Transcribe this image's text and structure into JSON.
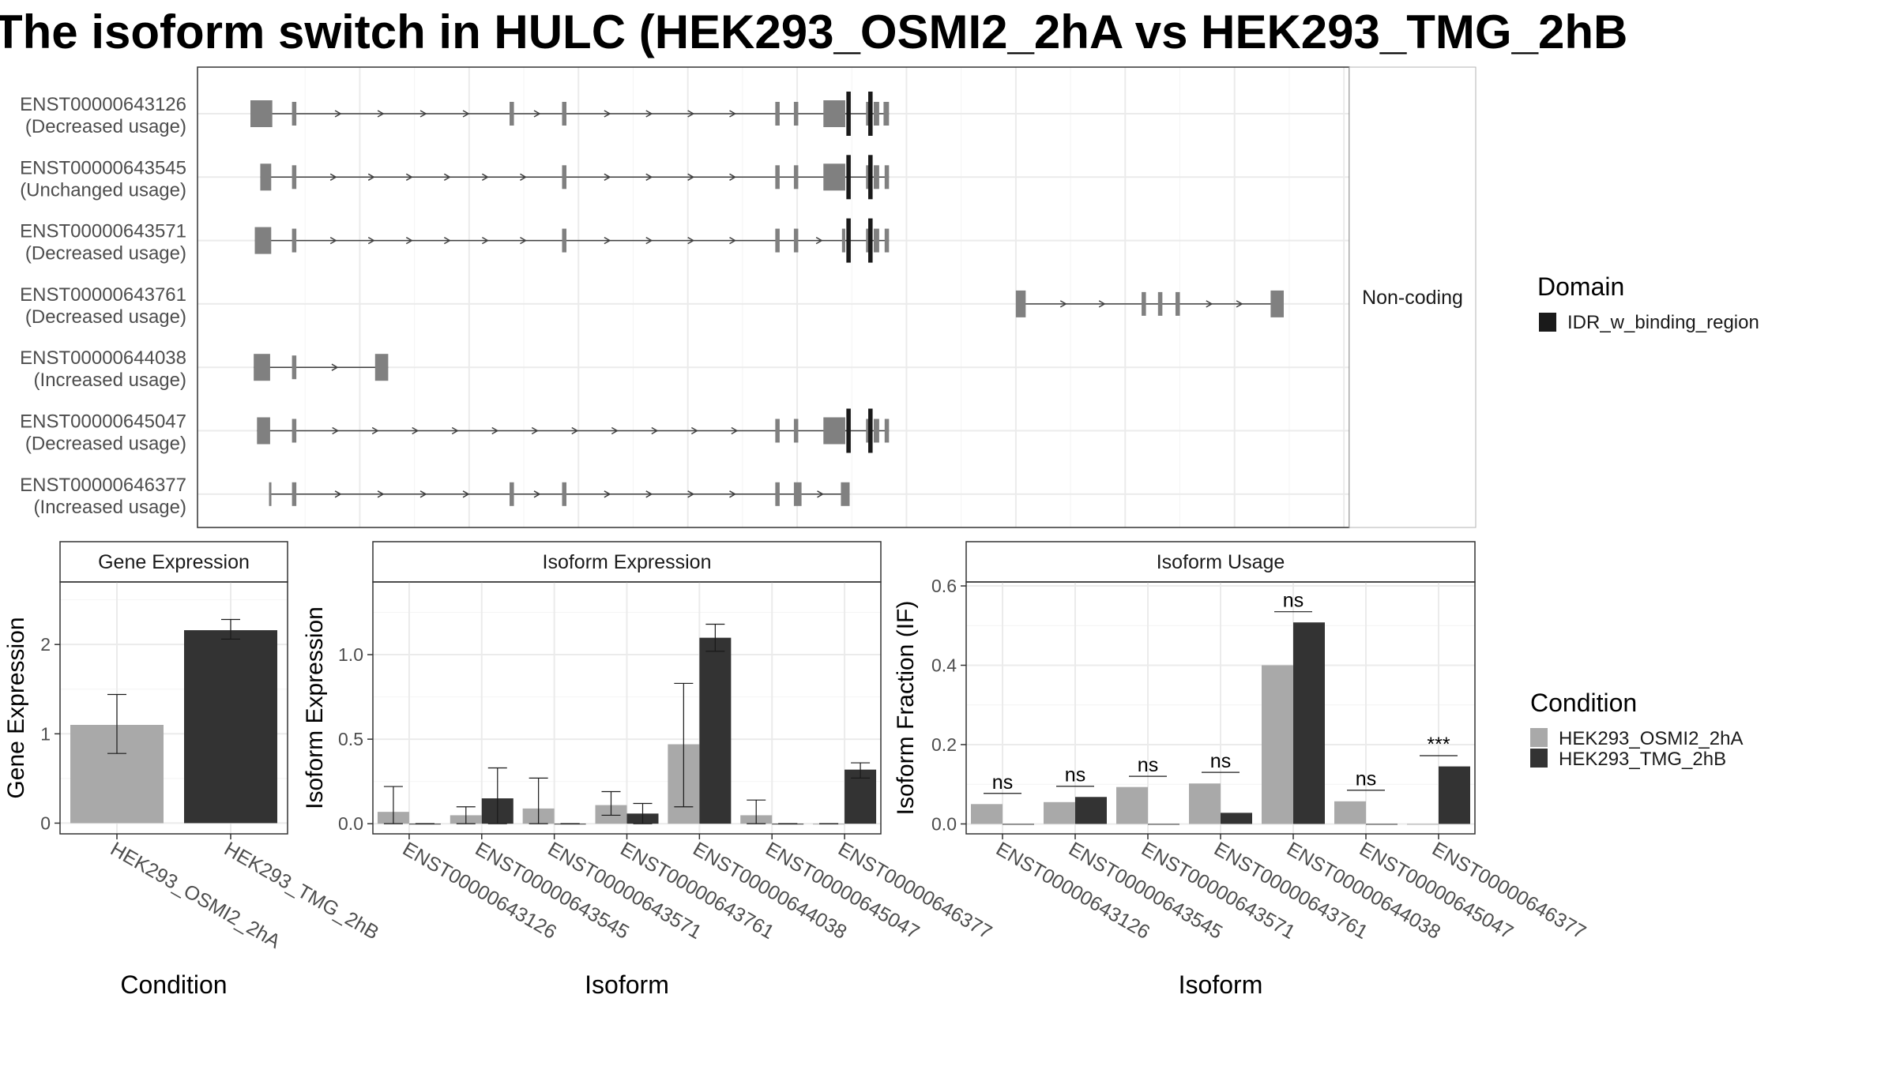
{
  "title": "The isoform switch in HULC (HEK293_OSMI2_2hA vs HEK293_TMG_2hB",
  "colors": {
    "osmi": "#a9a9a9",
    "tmg": "#333333",
    "exon": "#808080",
    "domain": "#1a1a1a",
    "grid": "#ebebeb",
    "panel_border": "#333333",
    "strip_fill": "#ffffff"
  },
  "chart_data": [
    {
      "type": "transcript_structure",
      "facet_label": "Non-coding",
      "xlim": [
        0,
        1000
      ],
      "legend": {
        "title": "Domain",
        "entries": [
          "IDR_w_binding_region"
        ]
      },
      "transcripts": [
        {
          "id": "ENST00000643126",
          "usage": "(Decreased usage)",
          "exons": [
            [
              0,
              20
            ],
            [
              38,
              42
            ],
            [
              237,
              241
            ],
            [
              285,
              289
            ],
            [
              480,
              484
            ],
            [
              497,
              501
            ],
            [
              524,
              544
            ],
            [
              563,
              568
            ],
            [
              570,
              575
            ],
            [
              584,
              579
            ]
          ],
          "domains": [
            [
              545,
              549
            ],
            [
              565,
              569
            ]
          ]
        },
        {
          "id": "ENST00000643545",
          "usage": "(Unchanged usage)",
          "exons": [
            [
              9,
              19
            ],
            [
              38,
              42
            ],
            [
              285,
              289
            ],
            [
              480,
              484
            ],
            [
              497,
              501
            ],
            [
              524,
              544
            ],
            [
              563,
              568
            ],
            [
              570,
              575
            ],
            [
              580,
              584
            ]
          ],
          "domains": [
            [
              545,
              549
            ],
            [
              565,
              569
            ]
          ]
        },
        {
          "id": "ENST00000643571",
          "usage": "(Decreased usage)",
          "exons": [
            [
              4,
              19
            ],
            [
              38,
              42
            ],
            [
              285,
              289
            ],
            [
              480,
              484
            ],
            [
              497,
              501
            ],
            [
              541,
              544
            ],
            [
              563,
              568
            ],
            [
              570,
              575
            ],
            [
              580,
              584
            ]
          ],
          "domains": [
            [
              545,
              549
            ],
            [
              565,
              569
            ]
          ]
        },
        {
          "id": "ENST00000643761",
          "usage": "(Decreased usage)",
          "exons": [
            [
              700,
              709
            ],
            [
              815,
              819
            ],
            [
              830,
              834
            ],
            [
              846,
              850
            ],
            [
              933,
              945
            ]
          ],
          "domains": []
        },
        {
          "id": "ENST00000644038",
          "usage": "(Increased usage)",
          "exons": [
            [
              3,
              18
            ],
            [
              38,
              42
            ],
            [
              114,
              126
            ]
          ],
          "domains": []
        },
        {
          "id": "ENST00000645047",
          "usage": "(Decreased usage)",
          "exons": [
            [
              6,
              18
            ],
            [
              38,
              42
            ],
            [
              480,
              484
            ],
            [
              497,
              501
            ],
            [
              524,
              544
            ],
            [
              563,
              568
            ],
            [
              570,
              575
            ],
            [
              580,
              584
            ]
          ],
          "domains": [
            [
              545,
              549
            ],
            [
              565,
              569
            ]
          ]
        },
        {
          "id": "ENST00000646377",
          "usage": "(Increased usage)",
          "exons": [
            [
              17,
              19
            ],
            [
              38,
              42
            ],
            [
              237,
              241
            ],
            [
              285,
              289
            ],
            [
              480,
              484
            ],
            [
              497,
              504
            ],
            [
              540,
              548
            ]
          ],
          "domains": []
        }
      ]
    },
    {
      "type": "bar",
      "title": "Gene Expression",
      "xlabel": "Condition",
      "ylabel": "Gene Expression",
      "ylim": [
        -0.12,
        2.7
      ],
      "yticks": [
        0,
        1,
        2
      ],
      "categories": [
        "HEK293_OSMI2_2hA",
        "HEK293_TMG_2hB"
      ],
      "values": [
        1.1,
        2.16
      ],
      "errors": [
        [
          0.78,
          1.44
        ],
        [
          2.06,
          2.28
        ]
      ]
    },
    {
      "type": "bar",
      "title": "Isoform Expression",
      "xlabel": "Isoform",
      "ylabel": "Isoform Expression",
      "ylim": [
        -0.06,
        1.43
      ],
      "yticks": [
        0.0,
        0.5,
        1.0
      ],
      "categories": [
        "ENST00000643126",
        "ENST00000643545",
        "ENST00000643571",
        "ENST00000643761",
        "ENST00000644038",
        "ENST00000645047",
        "ENST00000646377"
      ],
      "series": [
        {
          "name": "HEK293_OSMI2_2hA",
          "values": [
            0.07,
            0.05,
            0.09,
            0.11,
            0.47,
            0.05,
            0.0
          ],
          "errors": [
            [
              0.0,
              0.22
            ],
            [
              0.0,
              0.1
            ],
            [
              0.0,
              0.27
            ],
            [
              0.05,
              0.19
            ],
            [
              0.1,
              0.83
            ],
            [
              0.0,
              0.14
            ],
            [
              0.0,
              0.0
            ]
          ]
        },
        {
          "name": "HEK293_TMG_2hB",
          "values": [
            0.0,
            0.15,
            0.0,
            0.06,
            1.1,
            0.0,
            0.32
          ],
          "errors": [
            [
              0.0,
              0.0
            ],
            [
              0.0,
              0.33
            ],
            [
              0.0,
              0.0
            ],
            [
              0.0,
              0.12
            ],
            [
              1.02,
              1.18
            ],
            [
              0.0,
              0.0
            ],
            [
              0.27,
              0.36
            ]
          ]
        }
      ]
    },
    {
      "type": "bar",
      "title": "Isoform Usage",
      "xlabel": "Isoform",
      "ylabel": "Isoform Fraction (IF)",
      "ylim": [
        -0.025,
        0.61
      ],
      "yticks": [
        0.0,
        0.2,
        0.4,
        0.6
      ],
      "categories": [
        "ENST00000643126",
        "ENST00000643545",
        "ENST00000643571",
        "ENST00000643761",
        "ENST00000644038",
        "ENST00000645047",
        "ENST00000646377"
      ],
      "series": [
        {
          "name": "HEK293_OSMI2_2hA",
          "values": [
            0.05,
            0.055,
            0.093,
            0.102,
            0.4,
            0.057,
            0.0
          ]
        },
        {
          "name": "HEK293_TMG_2hB",
          "values": [
            0.0,
            0.068,
            0.0,
            0.028,
            0.508,
            0.0,
            0.145
          ]
        }
      ],
      "significance": [
        "ns",
        "ns",
        "ns",
        "ns",
        "ns",
        "ns",
        "***"
      ],
      "significance_y": [
        0.077,
        0.095,
        0.12,
        0.13,
        0.535,
        0.085,
        0.172
      ]
    }
  ],
  "condition_legend": {
    "title": "Condition",
    "entries": [
      "HEK293_OSMI2_2hA",
      "HEK293_TMG_2hB"
    ]
  }
}
